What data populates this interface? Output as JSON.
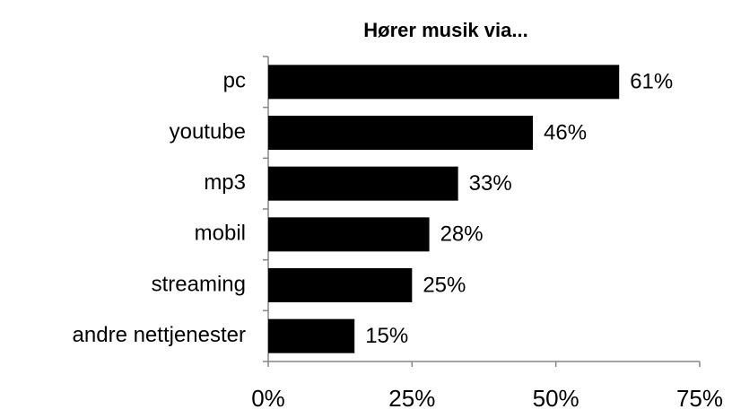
{
  "chart_data": {
    "type": "barh",
    "title": "Hører musik via...",
    "categories": [
      "pc",
      "youtube",
      "mp3",
      "mobil",
      "streaming",
      "andre nettjenester"
    ],
    "values": [
      61,
      46,
      33,
      28,
      25,
      15
    ],
    "value_labels": [
      "61%",
      "46%",
      "33%",
      "28%",
      "25%",
      "15%"
    ],
    "color": "#000000",
    "xlim": [
      0,
      75
    ],
    "xticks": [
      {
        "value": 0,
        "label": "0%"
      },
      {
        "value": 25,
        "label": "25%"
      },
      {
        "value": 50,
        "label": "50%"
      },
      {
        "value": 75,
        "label": "75%"
      }
    ],
    "grid": false
  }
}
